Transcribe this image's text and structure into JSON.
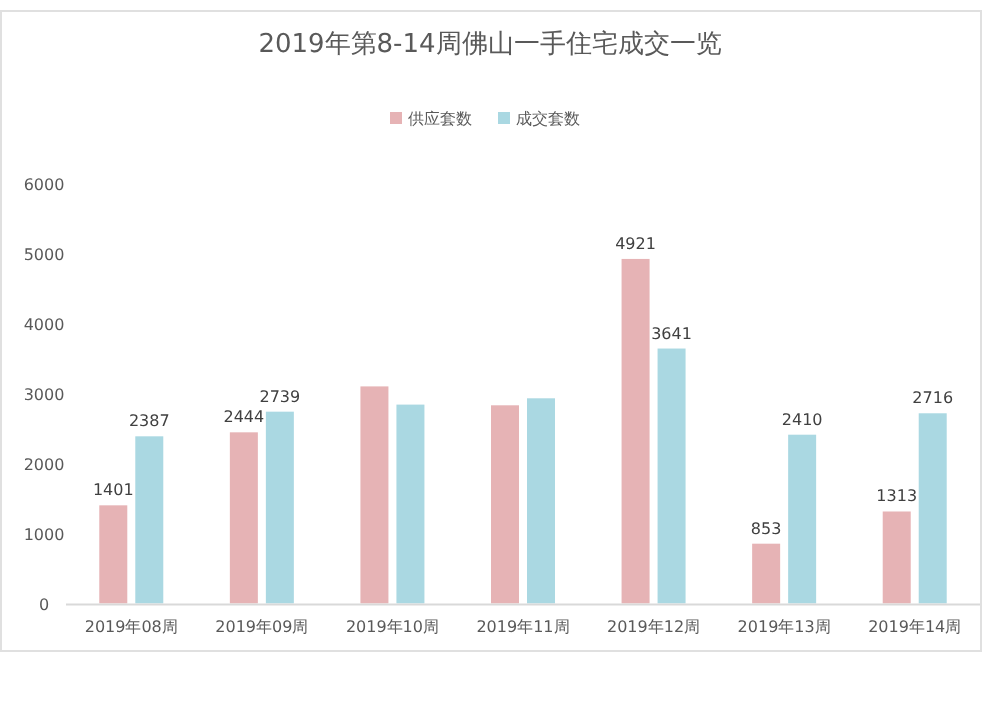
{
  "chart_data": {
    "type": "bar",
    "title": "2019年第8-14周佛山一手住宅成交一览",
    "categories": [
      "2019年08周",
      "2019年09周",
      "2019年10周",
      "2019年11周",
      "2019年12周",
      "2019年13周",
      "2019年14周"
    ],
    "series": [
      {
        "name": "供应套数",
        "color": "#e6b3b5",
        "values": [
          1401,
          2444,
          3100,
          2830,
          4921,
          853,
          1313
        ],
        "value_labels": [
          "1401",
          "2444",
          null,
          null,
          "4921",
          "853",
          "1313"
        ]
      },
      {
        "name": "成交套数",
        "color": "#aad8e2",
        "values": [
          2387,
          2739,
          2840,
          2930,
          3641,
          2410,
          2716
        ],
        "value_labels": [
          "2387",
          "2739",
          null,
          null,
          "3641",
          "2410",
          "2716"
        ]
      }
    ],
    "ylim": [
      0,
      6000
    ],
    "yticks": [
      0,
      1000,
      2000,
      3000,
      4000,
      5000,
      6000
    ],
    "grid": false,
    "legend": "top"
  }
}
